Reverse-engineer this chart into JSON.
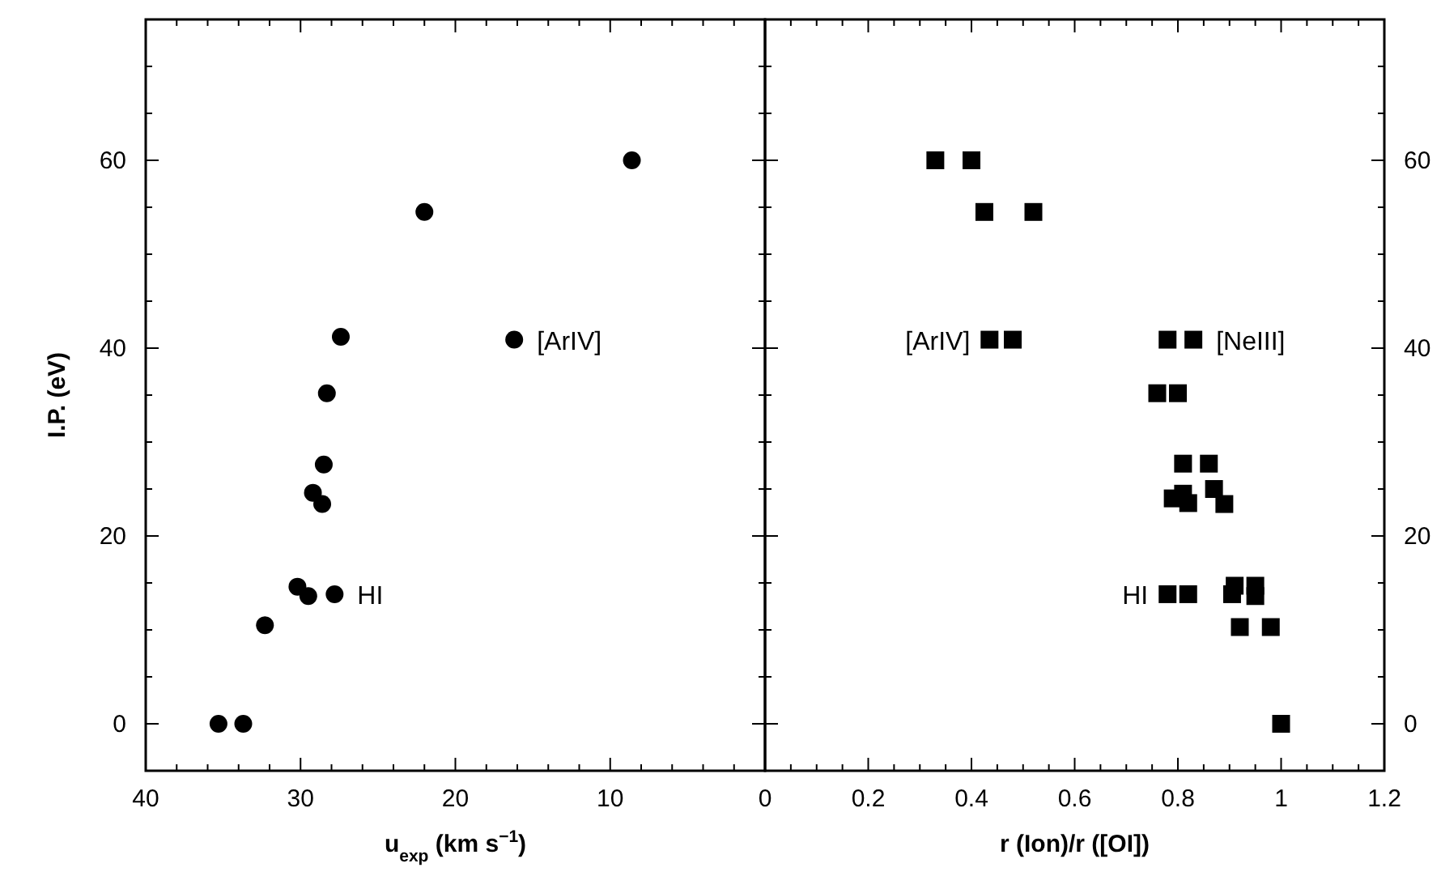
{
  "chart_data": [
    {
      "type": "scatter",
      "xlabel": "u$_{exp}$ (km s$^{−1}$)",
      "ylabel": "I.P. (eV)",
      "marker": "circle",
      "xlim": [
        40,
        0
      ],
      "xticks": [
        40,
        {
          "value": 38,
          "label": null
        },
        {
          "value": 36,
          "label": null
        },
        {
          "value": 34,
          "label": null
        },
        {
          "value": 32,
          "label": null
        },
        30,
        {
          "value": 28,
          "label": null
        },
        {
          "value": 26,
          "label": null
        },
        {
          "value": 24,
          "label": null
        },
        {
          "value": 22,
          "label": null
        },
        20,
        {
          "value": 18,
          "label": null
        },
        {
          "value": 16,
          "label": null
        },
        {
          "value": 14,
          "label": null
        },
        {
          "value": 12,
          "label": null
        },
        10,
        {
          "value": 8,
          "label": null
        },
        {
          "value": 6,
          "label": null
        },
        {
          "value": 4,
          "label": null
        },
        {
          "value": 2,
          "label": null
        },
        {
          "value": 0,
          "label": null
        }
      ],
      "ylim": [
        -5,
        75
      ],
      "yticks": [
        0,
        {
          "value": 5,
          "label": null
        },
        {
          "value": 10,
          "label": null
        },
        {
          "value": 15,
          "label": null
        },
        20,
        {
          "value": 25,
          "label": null
        },
        {
          "value": 30,
          "label": null
        },
        {
          "value": 35,
          "label": null
        },
        40,
        {
          "value": 45,
          "label": null
        },
        {
          "value": 50,
          "label": null
        },
        {
          "value": 55,
          "label": null
        },
        60,
        {
          "value": 65,
          "label": null
        },
        {
          "value": 70,
          "label": null
        }
      ],
      "series": [
        {
          "color": "#000000",
          "x": [
            8.6,
            22.0,
            27.4,
            16.2,
            28.3,
            28.5,
            29.2,
            28.6,
            30.2,
            29.5,
            27.8,
            32.3,
            35.3,
            33.7
          ],
          "values": [
            60,
            54.5,
            41.2,
            40.9,
            35.2,
            27.6,
            24.6,
            23.4,
            14.6,
            13.6,
            13.8,
            10.5,
            0,
            0
          ]
        }
      ],
      "annotations": [
        {
          "text": "[ArIV]",
          "x": 16.2,
          "y": 40.9
        },
        {
          "text": "HI",
          "x": 27.8,
          "y": 13.8
        }
      ]
    },
    {
      "type": "scatter",
      "xlabel": "r (Ion)/r ([OI])",
      "marker": "square",
      "xlim": [
        0,
        1.2
      ],
      "xticks": [
        0,
        {
          "value": 0.05,
          "label": null
        },
        {
          "value": 0.1,
          "label": null
        },
        {
          "value": 0.15,
          "label": null
        },
        0.2,
        {
          "value": 0.25,
          "label": null
        },
        {
          "value": 0.3,
          "label": null
        },
        {
          "value": 0.35,
          "label": null
        },
        0.4,
        {
          "value": 0.45,
          "label": null
        },
        {
          "value": 0.5,
          "label": null
        },
        {
          "value": 0.55,
          "label": null
        },
        0.6,
        {
          "value": 0.65,
          "label": null
        },
        {
          "value": 0.7,
          "label": null
        },
        {
          "value": 0.75,
          "label": null
        },
        0.8,
        {
          "value": 0.85,
          "label": null
        },
        {
          "value": 0.9,
          "label": null
        },
        {
          "value": 0.95,
          "label": null
        },
        1,
        {
          "value": 1.05,
          "label": null
        },
        {
          "value": 1.1,
          "label": null
        },
        {
          "value": 1.15,
          "label": null
        },
        1.2
      ],
      "ylim": [
        -5,
        75
      ],
      "yticks": [
        0,
        {
          "value": 5,
          "label": null
        },
        {
          "value": 10,
          "label": null
        },
        {
          "value": 15,
          "label": null
        },
        20,
        {
          "value": 25,
          "label": null
        },
        {
          "value": 30,
          "label": null
        },
        {
          "value": 35,
          "label": null
        },
        40,
        {
          "value": 45,
          "label": null
        },
        {
          "value": 50,
          "label": null
        },
        {
          "value": 55,
          "label": null
        },
        60,
        {
          "value": 65,
          "label": null
        },
        {
          "value": 70,
          "label": null
        }
      ],
      "series": [
        {
          "color": "#000000",
          "x": [
            0.33,
            0.4,
            0.425,
            0.52,
            0.435,
            0.48,
            0.78,
            0.83,
            0.76,
            0.8,
            0.81,
            0.86,
            0.79,
            0.81,
            0.82,
            0.87,
            0.89,
            0.78,
            0.82,
            0.905,
            0.91,
            0.95,
            0.95,
            0.92,
            0.98,
            1.0
          ],
          "values": [
            60,
            60,
            54.5,
            54.5,
            40.9,
            40.9,
            40.9,
            40.9,
            35.2,
            35.2,
            27.7,
            27.7,
            24,
            24.5,
            23.5,
            25,
            23.4,
            13.8,
            13.8,
            13.8,
            14.7,
            14.7,
            13.6,
            10.3,
            10.3,
            0
          ]
        }
      ],
      "annotations": [
        {
          "text": "[ArIV]",
          "x": 0.435,
          "y": 40.9
        },
        {
          "text": "[NeIII]",
          "x": 0.83,
          "y": 40.9
        },
        {
          "text": "HI",
          "x": 0.78,
          "y": 13.8
        }
      ]
    }
  ]
}
